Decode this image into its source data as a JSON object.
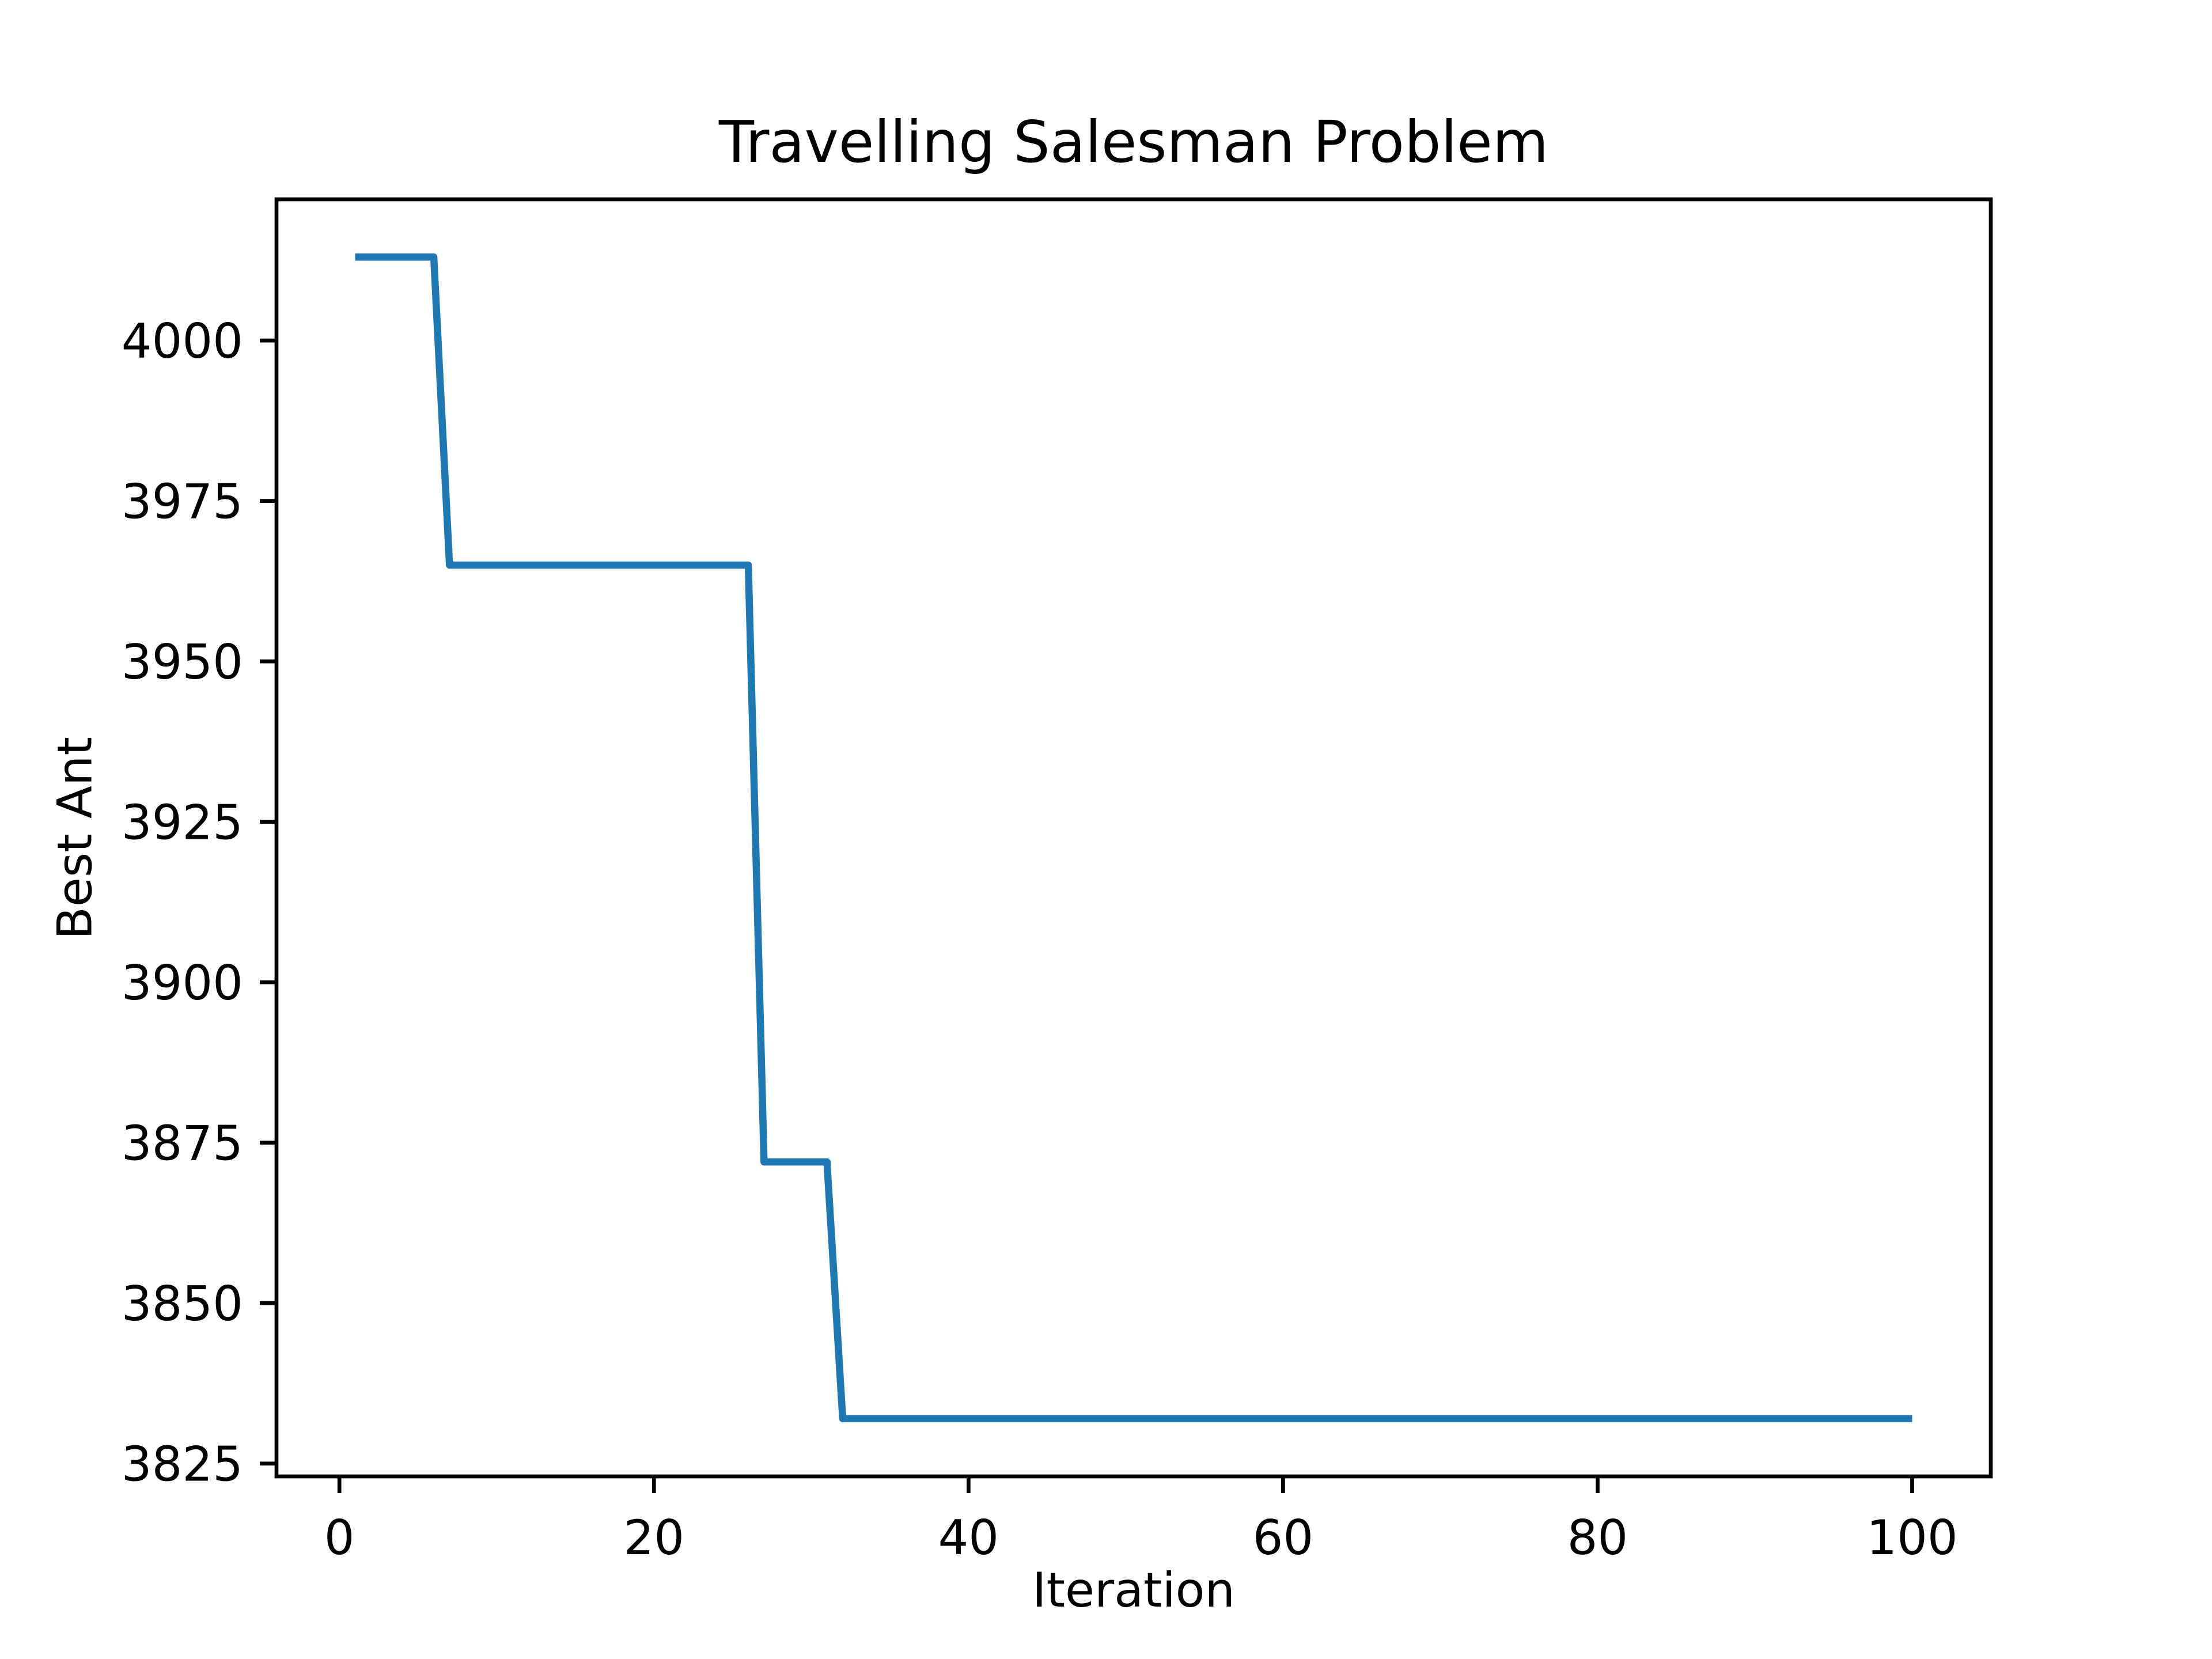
{
  "figure": {
    "background_color": "#ffffff",
    "title": "Travelling Salesman Problem",
    "xlabel": "Iteration",
    "ylabel": "Best Ant"
  },
  "chart_data": {
    "type": "line",
    "title": "Travelling Salesman Problem",
    "xlabel": "Iteration",
    "ylabel": "Best Ant",
    "xlim": [
      -4,
      105
    ],
    "ylim": [
      3823,
      4022
    ],
    "xticks": [
      0,
      20,
      40,
      60,
      80,
      100
    ],
    "yticks": [
      3825,
      3850,
      3875,
      3900,
      3925,
      3950,
      3975,
      4000
    ],
    "grid": false,
    "legend_position": "none",
    "line_color": "#1f77b4",
    "interpolation": "piecewise-linear-breakpoints",
    "series": [
      {
        "name": "Best Ant",
        "points": [
          [
            1,
            4013
          ],
          [
            6,
            4013
          ],
          [
            7,
            3965
          ],
          [
            26,
            3965
          ],
          [
            27,
            3872
          ],
          [
            31,
            3872
          ],
          [
            32,
            3832
          ],
          [
            100,
            3832
          ]
        ]
      }
    ]
  }
}
